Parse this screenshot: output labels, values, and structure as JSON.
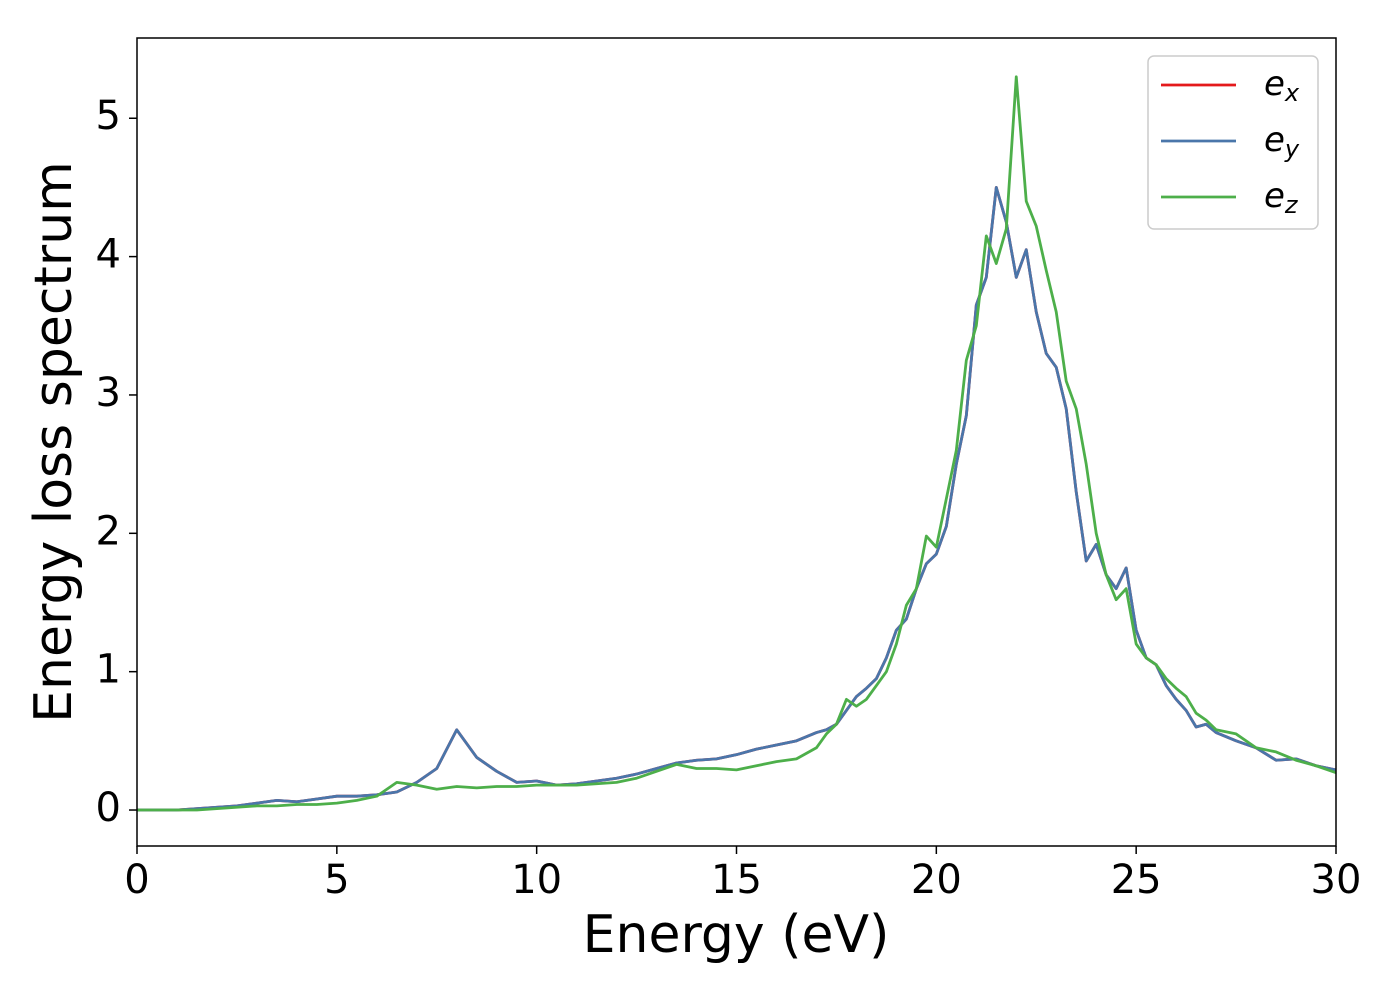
{
  "chart_data": {
    "type": "line",
    "xlabel": "Energy (eV)",
    "ylabel": "Energy loss spectrum",
    "x": [
      0,
      0.5,
      1,
      1.5,
      2,
      2.5,
      3,
      3.5,
      4,
      4.5,
      5,
      5.5,
      6,
      6.5,
      7,
      7.5,
      8,
      8.5,
      9,
      9.5,
      10,
      10.5,
      11,
      11.5,
      12,
      12.5,
      13,
      13.5,
      14,
      14.5,
      15,
      15.5,
      16,
      16.5,
      17,
      17.25,
      17.5,
      17.75,
      18,
      18.25,
      18.5,
      18.75,
      19,
      19.25,
      19.5,
      19.75,
      20,
      20.25,
      20.5,
      20.75,
      21,
      21.25,
      21.5,
      21.75,
      22,
      22.25,
      22.5,
      22.75,
      23,
      23.25,
      23.5,
      23.75,
      24,
      24.25,
      24.5,
      24.75,
      25,
      25.25,
      25.5,
      25.75,
      26,
      26.25,
      26.5,
      26.75,
      27,
      27.5,
      28,
      28.5,
      29,
      29.5,
      30
    ],
    "series": [
      {
        "name": "ex",
        "color": "#e41a1c",
        "values": [
          0,
          0,
          0,
          0.01,
          0.02,
          0.03,
          0.05,
          0.07,
          0.06,
          0.08,
          0.1,
          0.1,
          0.11,
          0.13,
          0.2,
          0.3,
          0.58,
          0.38,
          0.28,
          0.2,
          0.21,
          0.18,
          0.19,
          0.21,
          0.23,
          0.26,
          0.3,
          0.34,
          0.36,
          0.37,
          0.4,
          0.44,
          0.47,
          0.5,
          0.56,
          0.58,
          0.62,
          0.72,
          0.82,
          0.88,
          0.95,
          1.1,
          1.3,
          1.38,
          1.6,
          1.78,
          1.85,
          2.05,
          2.5,
          2.85,
          3.65,
          3.85,
          4.5,
          4.25,
          3.85,
          4.05,
          3.6,
          3.3,
          3.2,
          2.9,
          2.3,
          1.8,
          1.92,
          1.7,
          1.6,
          1.75,
          1.3,
          1.1,
          1.05,
          0.9,
          0.8,
          0.72,
          0.6,
          0.62,
          0.56,
          0.5,
          0.45,
          0.36,
          0.37,
          0.32,
          0.29
        ]
      },
      {
        "name": "ey",
        "color": "#4a76aa",
        "values": [
          0,
          0,
          0,
          0.01,
          0.02,
          0.03,
          0.05,
          0.07,
          0.06,
          0.08,
          0.1,
          0.1,
          0.11,
          0.13,
          0.2,
          0.3,
          0.58,
          0.38,
          0.28,
          0.2,
          0.21,
          0.18,
          0.19,
          0.21,
          0.23,
          0.26,
          0.3,
          0.34,
          0.36,
          0.37,
          0.4,
          0.44,
          0.47,
          0.5,
          0.56,
          0.58,
          0.62,
          0.72,
          0.82,
          0.88,
          0.95,
          1.1,
          1.3,
          1.38,
          1.6,
          1.78,
          1.85,
          2.05,
          2.5,
          2.85,
          3.65,
          3.85,
          4.5,
          4.25,
          3.85,
          4.05,
          3.6,
          3.3,
          3.2,
          2.9,
          2.3,
          1.8,
          1.92,
          1.7,
          1.6,
          1.75,
          1.3,
          1.1,
          1.05,
          0.9,
          0.8,
          0.72,
          0.6,
          0.62,
          0.56,
          0.5,
          0.45,
          0.36,
          0.37,
          0.32,
          0.29
        ]
      },
      {
        "name": "ez",
        "color": "#4daf4a",
        "values": [
          0,
          0,
          0,
          0,
          0.01,
          0.02,
          0.03,
          0.03,
          0.04,
          0.04,
          0.05,
          0.07,
          0.1,
          0.2,
          0.18,
          0.15,
          0.17,
          0.16,
          0.17,
          0.17,
          0.18,
          0.18,
          0.18,
          0.19,
          0.2,
          0.23,
          0.28,
          0.33,
          0.3,
          0.3,
          0.29,
          0.32,
          0.35,
          0.37,
          0.45,
          0.55,
          0.62,
          0.8,
          0.75,
          0.8,
          0.9,
          1.0,
          1.2,
          1.48,
          1.6,
          1.98,
          1.9,
          2.25,
          2.6,
          3.25,
          3.5,
          4.15,
          3.95,
          4.2,
          5.3,
          4.4,
          4.22,
          3.9,
          3.6,
          3.1,
          2.9,
          2.5,
          2.0,
          1.7,
          1.52,
          1.6,
          1.2,
          1.1,
          1.05,
          0.95,
          0.88,
          0.82,
          0.7,
          0.65,
          0.58,
          0.55,
          0.45,
          0.42,
          0.36,
          0.32,
          0.27
        ]
      }
    ],
    "xlim": [
      0,
      30
    ],
    "xticks": [
      0,
      5,
      10,
      15,
      20,
      25,
      30
    ],
    "ylim": [
      -0.26,
      5.58
    ],
    "yticks": [
      0,
      1,
      2,
      3,
      4,
      5
    ],
    "grid": false,
    "legend": "upper right"
  }
}
